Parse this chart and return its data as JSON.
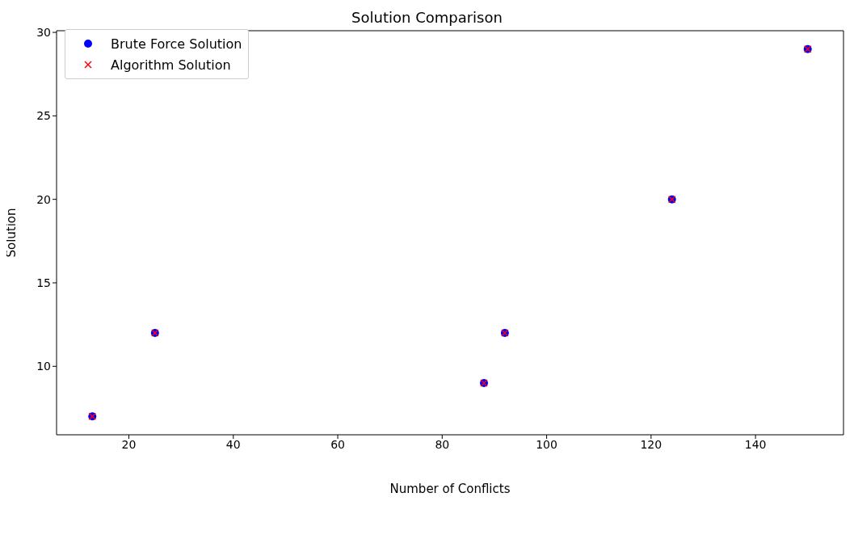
{
  "chart_data": {
    "type": "scatter",
    "title": "Solution Comparison",
    "xlabel": "Number of Conflicts",
    "ylabel": "Solution",
    "x": [
      13,
      25,
      88,
      92,
      124,
      150
    ],
    "series": [
      {
        "name": "Brute Force Solution",
        "color": "#0000ff",
        "marker": "circle",
        "values": [
          7,
          12,
          9,
          12,
          20,
          29
        ]
      },
      {
        "name": "Algorithm Solution",
        "color": "#ff0000",
        "marker": "cross",
        "values": [
          7,
          12,
          9,
          12,
          20,
          29
        ]
      }
    ],
    "xlim": [
      6.15,
      156.85
    ],
    "xticks": [
      20,
      40,
      60,
      80,
      100,
      120,
      140
    ],
    "ylim": [
      5.9,
      30.1
    ],
    "yticks": [
      10,
      15,
      20,
      25,
      30
    ],
    "grid": false,
    "legend": "top left"
  }
}
